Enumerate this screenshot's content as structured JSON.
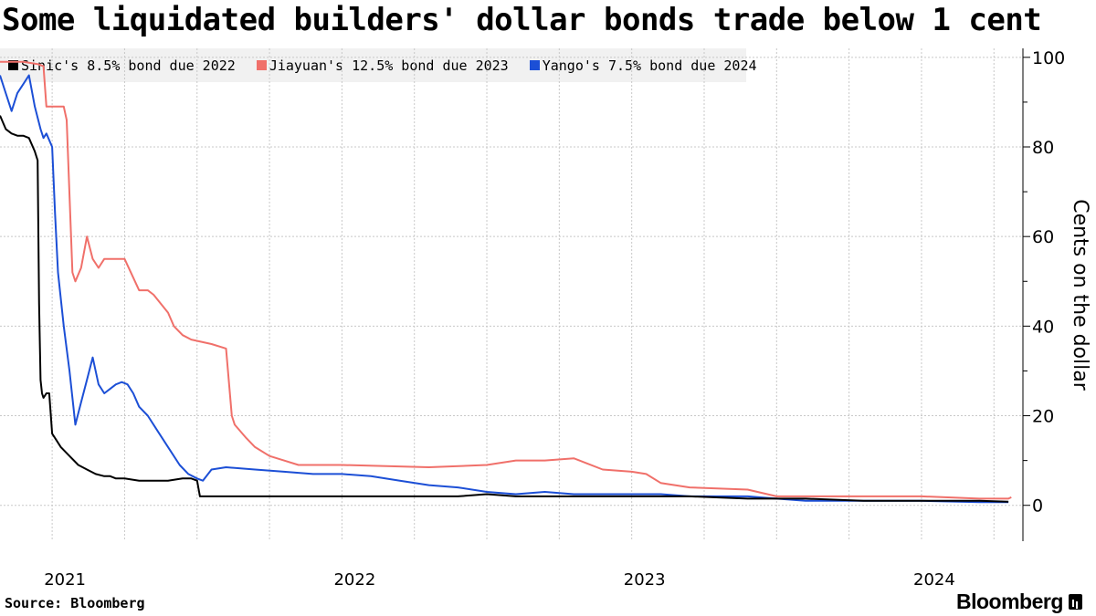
{
  "title": "Some liquidated builders' dollar bonds trade below 1 cent",
  "source": "Source: Bloomberg",
  "brand": "Bloomberg",
  "colors": {
    "sinic": "#000000",
    "jiayuan": "#f0706a",
    "yango": "#1c4fd6",
    "grid": "#c8c8c8"
  },
  "chart_data": {
    "type": "line",
    "title": "Some liquidated builders' dollar bonds trade below 1 cent",
    "xlabel": "",
    "ylabel": "Cents on the dollar",
    "xlim": [
      2020.82,
      2024.35
    ],
    "ylim": [
      -8,
      102
    ],
    "y_ticks": [
      0,
      20,
      40,
      60,
      80,
      100
    ],
    "x_tick_labels": [
      {
        "label": "2021",
        "x": 2021.0
      },
      {
        "label": "2022",
        "x": 2022.0
      },
      {
        "label": "2023",
        "x": 2023.0
      },
      {
        "label": "2024",
        "x": 2024.0
      }
    ],
    "quarter_grid": [
      2021.0,
      2021.25,
      2021.5,
      2021.75,
      2022.0,
      2022.25,
      2022.5,
      2022.75,
      2023.0,
      2023.25,
      2023.5,
      2023.75,
      2024.0,
      2024.25
    ],
    "legend_position": "top-left",
    "series": [
      {
        "name": "Sinic's 8.5% bond due 2022",
        "color": "#000000",
        "x": [
          2020.82,
          2020.84,
          2020.86,
          2020.88,
          2020.9,
          2020.92,
          2020.94,
          2020.95,
          2020.955,
          2020.96,
          2020.965,
          2020.97,
          2020.98,
          2020.99,
          2021.0,
          2021.01,
          2021.03,
          2021.06,
          2021.09,
          2021.12,
          2021.15,
          2021.18,
          2021.2,
          2021.22,
          2021.25,
          2021.3,
          2021.35,
          2021.4,
          2021.45,
          2021.48,
          2021.5,
          2021.51,
          2021.55,
          2021.6,
          2021.7,
          2021.8,
          2021.9,
          2022.0,
          2022.2,
          2022.4,
          2022.5,
          2022.6,
          2022.8,
          2023.0,
          2023.2,
          2023.4,
          2023.5,
          2023.6,
          2023.8,
          2024.0,
          2024.2,
          2024.3
        ],
        "y": [
          87,
          84,
          83,
          82.5,
          82.5,
          82,
          79,
          77,
          45,
          28,
          25,
          24,
          25,
          25,
          16,
          15,
          13,
          11,
          9,
          8,
          7,
          6.5,
          6.5,
          6,
          6,
          5.5,
          5.5,
          5.5,
          6,
          6,
          5.5,
          2,
          2,
          2,
          2,
          2,
          2,
          2,
          2,
          2,
          2.5,
          2,
          2,
          2,
          2,
          1.5,
          1.5,
          1.5,
          1,
          1,
          1,
          0.8
        ]
      },
      {
        "name": "Jiayuan's 12.5% bond due 2023",
        "color": "#f0706a",
        "x": [
          2020.82,
          2020.9,
          2020.95,
          2020.97,
          2020.98,
          2021.04,
          2021.05,
          2021.07,
          2021.08,
          2021.1,
          2021.12,
          2021.14,
          2021.16,
          2021.18,
          2021.2,
          2021.22,
          2021.25,
          2021.3,
          2021.33,
          2021.35,
          2021.4,
          2021.42,
          2021.45,
          2021.48,
          2021.55,
          2021.6,
          2021.62,
          2021.63,
          2021.67,
          2021.7,
          2021.75,
          2021.8,
          2021.85,
          2022.0,
          2022.3,
          2022.5,
          2022.6,
          2022.7,
          2022.8,
          2022.9,
          2023.0,
          2023.05,
          2023.1,
          2023.2,
          2023.4,
          2023.5,
          2023.7,
          2023.9,
          2024.0,
          2024.2,
          2024.3,
          2024.31
        ],
        "y": [
          99,
          99,
          98.5,
          98,
          89,
          89,
          86,
          52,
          50,
          53,
          60,
          55,
          53,
          55,
          55,
          55,
          55,
          48,
          48,
          47,
          43,
          40,
          38,
          37,
          36,
          35,
          20,
          18,
          15,
          13,
          11,
          10,
          9,
          9,
          8.5,
          9,
          10,
          10,
          10.5,
          8,
          7.5,
          7,
          5,
          4,
          3.5,
          2,
          2,
          2,
          2,
          1.5,
          1.5,
          1.8
        ]
      },
      {
        "name": "Yango's 7.5% bond due 2024",
        "color": "#1c4fd6",
        "x": [
          2020.82,
          2020.84,
          2020.86,
          2020.88,
          2020.9,
          2020.92,
          2020.94,
          2020.96,
          2020.97,
          2020.98,
          2021.0,
          2021.01,
          2021.02,
          2021.04,
          2021.06,
          2021.07,
          2021.08,
          2021.1,
          2021.12,
          2021.14,
          2021.16,
          2021.18,
          2021.2,
          2021.22,
          2021.24,
          2021.26,
          2021.28,
          2021.3,
          2021.33,
          2021.36,
          2021.4,
          2021.44,
          2021.47,
          2021.5,
          2021.52,
          2021.55,
          2021.6,
          2021.7,
          2021.8,
          2021.9,
          2022.0,
          2022.1,
          2022.2,
          2022.3,
          2022.4,
          2022.5,
          2022.6,
          2022.7,
          2022.8,
          2022.9,
          2023.0,
          2023.1,
          2023.2,
          2023.3,
          2023.4,
          2023.5,
          2023.6,
          2023.8,
          2024.0,
          2024.2,
          2024.3
        ],
        "y": [
          96,
          92,
          88,
          92,
          94,
          96,
          89,
          84,
          82,
          83,
          80,
          65,
          52,
          40,
          30,
          24,
          18,
          23,
          28,
          33,
          27,
          25,
          26,
          27,
          27.5,
          27,
          25,
          22,
          20,
          17,
          13,
          9,
          7,
          6,
          5.5,
          8,
          8.5,
          8,
          7.5,
          7,
          7,
          6.5,
          5.5,
          4.5,
          4,
          3,
          2.5,
          3,
          2.5,
          2.5,
          2.5,
          2.5,
          2,
          2,
          2,
          1.5,
          1,
          1,
          1,
          0.7,
          0.7
        ]
      }
    ]
  }
}
